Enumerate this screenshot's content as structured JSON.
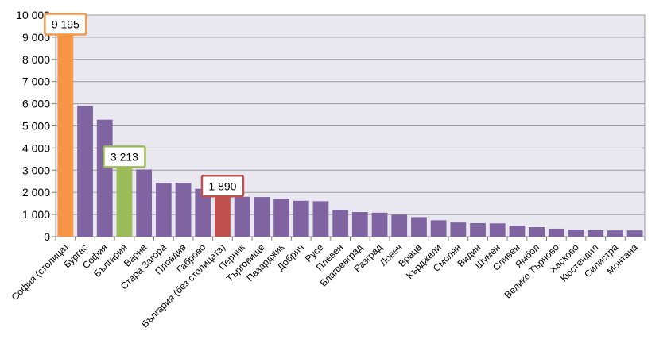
{
  "chart_data": {
    "type": "bar",
    "title": "",
    "xlabel": "",
    "ylabel": "",
    "ylim": [
      0,
      10000
    ],
    "yticks": [
      0,
      1000,
      2000,
      3000,
      4000,
      5000,
      6000,
      7000,
      8000,
      9000,
      10000
    ],
    "ytick_labels": [
      "0",
      "1 000",
      "2 000",
      "3 000",
      "4 000",
      "5 000",
      "6 000",
      "7 000",
      "8 000",
      "9 000",
      "10 000"
    ],
    "grid": true,
    "legend": "none",
    "colors": {
      "default": "#8064a2",
      "highlight_orange": "#f79646",
      "highlight_green": "#9bbb59",
      "highlight_red": "#c0504d",
      "plot_background": "#e9e7f0",
      "gridline": "#9c9c9c"
    },
    "categories": [
      "София (столица)",
      "Бургас",
      "София",
      "България",
      "Варна",
      "Стара Загора",
      "Пловдив",
      "Габрово",
      "България (без столицата)",
      "Перник",
      "Търговище",
      "Пазарджик",
      "Добрич",
      "Русе",
      "Плевен",
      "Благоевград",
      "Разград",
      "Ловеч",
      "Враца",
      "Кърджали",
      "Смолян",
      "Видин",
      "Шумен",
      "Сливен",
      "Ямбол",
      "Велико Търново",
      "Хасково",
      "Кюстендил",
      "Силистра",
      "Монтана"
    ],
    "values": [
      9195,
      5900,
      5280,
      3213,
      3030,
      2430,
      2430,
      2160,
      1890,
      1800,
      1790,
      1720,
      1620,
      1600,
      1210,
      1110,
      1080,
      990,
      880,
      740,
      640,
      610,
      600,
      500,
      430,
      360,
      320,
      290,
      280,
      280
    ],
    "bar_colors": [
      "#f79646",
      "#8064a2",
      "#8064a2",
      "#9bbb59",
      "#8064a2",
      "#8064a2",
      "#8064a2",
      "#8064a2",
      "#c0504d",
      "#8064a2",
      "#8064a2",
      "#8064a2",
      "#8064a2",
      "#8064a2",
      "#8064a2",
      "#8064a2",
      "#8064a2",
      "#8064a2",
      "#8064a2",
      "#8064a2",
      "#8064a2",
      "#8064a2",
      "#8064a2",
      "#8064a2",
      "#8064a2",
      "#8064a2",
      "#8064a2",
      "#8064a2",
      "#8064a2",
      "#8064a2"
    ],
    "annotations": [
      {
        "index": 0,
        "text": "9 195",
        "border": "#f79646"
      },
      {
        "index": 3,
        "text": "3 213",
        "border": "#9bbb59"
      },
      {
        "index": 8,
        "text": "1 890",
        "border": "#c0504d"
      }
    ]
  }
}
